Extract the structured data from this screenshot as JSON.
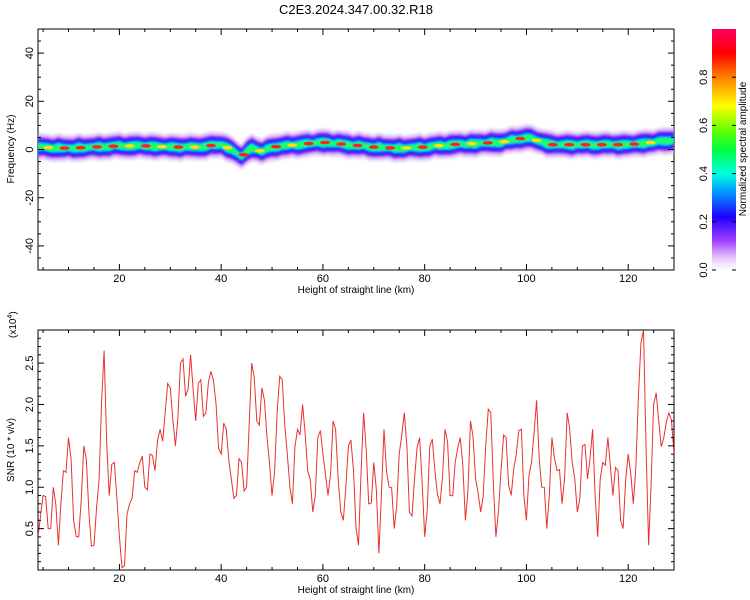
{
  "title": "C2E3.2024.347.00.32.R18",
  "chart_data": [
    {
      "type": "heatmap",
      "title": "C2E3.2024.347.00.32.R18",
      "xlabel": "Height of straight line (km)",
      "ylabel": "Frequency (Hz)",
      "xlim": [
        4,
        129
      ],
      "ylim": [
        -50,
        50
      ],
      "x_ticks": [
        20,
        40,
        60,
        80,
        100,
        120
      ],
      "y_ticks": [
        -40,
        -20,
        0,
        20,
        40
      ],
      "colorbar": {
        "label": "Normalized spectral amplitude",
        "range": [
          0,
          1
        ],
        "ticks": [
          "0.0",
          "0.2",
          "0.4",
          "0.6",
          "0.8"
        ],
        "tick_values": [
          0.0,
          0.2,
          0.4,
          0.6,
          0.8
        ]
      },
      "ridge_center": {
        "x": [
          4,
          10,
          15,
          20,
          25,
          30,
          35,
          40,
          42,
          44,
          46,
          48,
          50,
          55,
          60,
          65,
          70,
          75,
          80,
          85,
          90,
          95,
          100,
          105,
          110,
          115,
          120,
          125,
          129
        ],
        "y": [
          1,
          0.5,
          1,
          1.5,
          1.5,
          1,
          1,
          2,
          0,
          -3,
          1,
          -1,
          1,
          2,
          3,
          2,
          1,
          0.5,
          1,
          2,
          2.5,
          3,
          5,
          2,
          2,
          2,
          2,
          3,
          4
        ]
      },
      "grid": false
    },
    {
      "type": "line",
      "xlabel": "Height of straight line (km)",
      "ylabel": "SNR (10 * v/v)",
      "multiplier_label": "(x10",
      "multiplier_exp": "4",
      "multiplier_close": ")",
      "xlim": [
        4,
        129
      ],
      "ylim": [
        0,
        2.9
      ],
      "x_ticks": [
        20,
        40,
        60,
        80,
        100,
        120
      ],
      "y_ticks": [
        0.5,
        1.0,
        1.5,
        2.0,
        2.5
      ],
      "line_color": "#e8312f",
      "grid": false,
      "series": [
        {
          "x": [
            4,
            5,
            6,
            7,
            8,
            9,
            10,
            11,
            12,
            13,
            14,
            15,
            16,
            17,
            18,
            19,
            20,
            21,
            22,
            23,
            24,
            25,
            26,
            27,
            28,
            29,
            30,
            31,
            32,
            33,
            34,
            35,
            36,
            37,
            38,
            39,
            40,
            41,
            42,
            43,
            44,
            45,
            46,
            47,
            48,
            49,
            50,
            51,
            52,
            53,
            54,
            55,
            56,
            57,
            58,
            59,
            60,
            61,
            62,
            63,
            64,
            65,
            66,
            67,
            68,
            69,
            70,
            71,
            72,
            73,
            74,
            75,
            76,
            77,
            78,
            79,
            80,
            81,
            82,
            83,
            84,
            85,
            86,
            87,
            88,
            89,
            90,
            91,
            92,
            93,
            94,
            95,
            96,
            97,
            98,
            99,
            100,
            101,
            102,
            103,
            104,
            105,
            106,
            107,
            108,
            109,
            110,
            111,
            112,
            113,
            114,
            115,
            116,
            117,
            118,
            119,
            120,
            121,
            122,
            123,
            124,
            125,
            126,
            127,
            128,
            129
          ],
          "y": [
            0.4,
            0.9,
            0.5,
            1.0,
            0.3,
            1.2,
            1.6,
            0.6,
            0.4,
            1.5,
            0.7,
            0.3,
            1.1,
            2.65,
            0.9,
            1.3,
            0.4,
            0.05,
            0.8,
            1.2,
            1.3,
            1.0,
            1.4,
            1.2,
            1.7,
            1.9,
            2.2,
            1.5,
            2.5,
            2.1,
            2.6,
            1.8,
            2.3,
            1.9,
            2.4,
            2.0,
            1.4,
            1.7,
            1.1,
            0.9,
            1.3,
            1.0,
            2.5,
            1.8,
            2.2,
            1.6,
            0.9,
            1.9,
            2.3,
            1.4,
            0.8,
            1.7,
            2.0,
            1.2,
            0.7,
            1.6,
            1.4,
            0.9,
            1.8,
            1.1,
            0.6,
            1.5,
            1.2,
            0.3,
            1.9,
            0.8,
            1.3,
            0.2,
            1.7,
            1.0,
            0.5,
            1.4,
            1.9,
            0.7,
            1.1,
            1.6,
            0.4,
            1.5,
            1.2,
            0.8,
            1.7,
            0.9,
            1.3,
            1.6,
            0.6,
            1.8,
            1.1,
            0.7,
            1.5,
            1.9,
            0.4,
            1.2,
            1.6,
            0.9,
            1.4,
            1.7,
            0.6,
            1.3,
            2.05,
            1.0,
            0.5,
            1.6,
            1.2,
            0.8,
            1.9,
            1.3,
            0.7,
            1.5,
            1.1,
            1.7,
            0.4,
            1.3,
            1.6,
            0.9,
            1.2,
            0.5,
            1.4,
            0.8,
            2.1,
            2.9,
            0.3,
            2.0,
            1.8,
            1.6,
            1.9,
            1.4
          ]
        }
      ]
    }
  ]
}
